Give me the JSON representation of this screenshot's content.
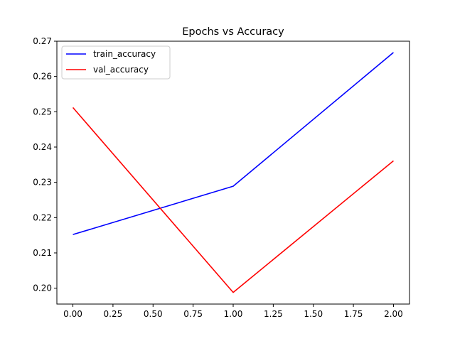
{
  "chart_data": {
    "type": "line",
    "title": "Epochs vs Accuracy",
    "xlabel": "",
    "ylabel": "",
    "xlim": [
      -0.1,
      2.1
    ],
    "ylim": [
      0.1955,
      0.27
    ],
    "xticks": [
      "0.00",
      "0.25",
      "0.50",
      "0.75",
      "1.00",
      "1.25",
      "1.50",
      "1.75",
      "2.00"
    ],
    "yticks": [
      "0.20",
      "0.21",
      "0.22",
      "0.23",
      "0.24",
      "0.25",
      "0.26",
      "0.27"
    ],
    "x": [
      0,
      1,
      2
    ],
    "series": [
      {
        "name": "train_accuracy",
        "color": "#0000ff",
        "values": [
          0.2152,
          0.2289,
          0.2668
        ]
      },
      {
        "name": "val_accuracy",
        "color": "#ff0000",
        "values": [
          0.2512,
          0.1988,
          0.2361
        ]
      }
    ],
    "legend": "upper-left",
    "grid": false
  }
}
